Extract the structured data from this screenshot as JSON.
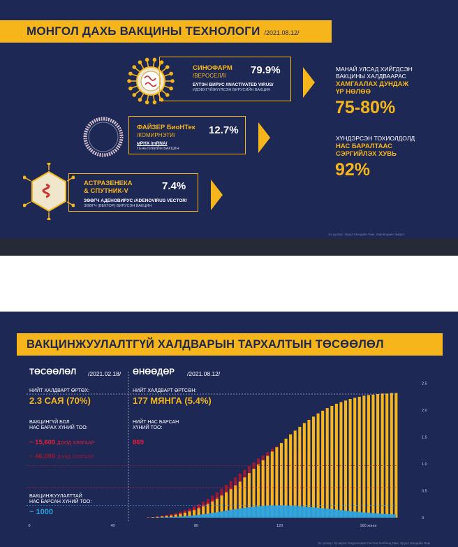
{
  "colors": {
    "navy": "#1d2855",
    "gold": "#f5b51b",
    "red": "#e0213a",
    "darkred": "#9c1a33",
    "blue": "#2ba3e0"
  },
  "panel1": {
    "title": "МОНГОЛ ДАХЬ ВАКЦИНЫ ТЕХНОЛОГИ",
    "date": "/2021.08.12/",
    "vaccines": [
      {
        "name": "СИНОФАРМ",
        "sub": "/ВЕРОСЕЛЛ/",
        "pct": "79.9%",
        "type": "БҮТЭН ВИРУС /INACTIVATED VIRUS/",
        "type2": "ИДЭВХГҮЙЖҮҮЛСЭН ВИРУСИЙН ВАКЦИН",
        "icon": "virus-icon"
      },
      {
        "name": "ФАЙЗЕР БиоНТек",
        "sub": "/КОМИРНЭТИ/",
        "pct": "12.7%",
        "type": "мРНХ /mRNA/",
        "type2": "ГЕНЕТИКИЙН ВАКЦИН",
        "icon": "mrna-ring-icon"
      },
      {
        "name": "АСТРАЗЕНЕКА",
        "name2": "& СПУТНИК-V",
        "pct": "7.4%",
        "type": "ЗӨӨГЧ АДЕНОВИРУС /ADENOVIRUS VECTOR/",
        "type2": "ЗӨӨГЧ (ВЕКТОР) ВИРУСЭН ВАКЦИН",
        "icon": "adenovirus-icon"
      }
    ],
    "side": {
      "line1": "МАНАЙ УЛСАД ХИЙГДСЭН",
      "line2": "ВАКЦИНЫ ХАЛДВААРАС",
      "bold1": "ХАМГААЛАХ ДУНДАЖ",
      "bold2": "ҮР НӨЛӨӨ",
      "big1": "75-80%",
      "line3": "ХҮНДЭРСЭН ТОХИОЛДОЛД",
      "bold3": "НАС БАРАЛТААС",
      "bold4": "СЭРГИЙЛЭХ ХУВЬ",
      "big2": "92%"
    },
    "source": "Эх үүсвэр: Эрүүл Мэндийн Яам, Зөрчилдөөн Эмдэгт"
  },
  "panel2": {
    "title": "ВАКЦИНЖУУЛАЛТГҮЙ ХАЛДВАРЫН ТАРХАЛТЫН ТӨСӨӨЛӨЛ",
    "left": {
      "head": "ТӨСӨӨЛӨЛ",
      "date": "/2021.02.18/",
      "label1": "НИЙТ ХАЛДВАРТ ӨРТӨХ:",
      "value1": "2.3 САЯ (70%)",
      "label2a": "ВАКЦИНГҮЙ БОЛ",
      "label2b": "НАС БАРАХ ХҮНИЙ ТОО:",
      "red1": "~ 15,600",
      "red1s": "ДООД ХЯЗГААР",
      "red2": "~ 46,000",
      "red2s": "ДЭЭД ХЯЗГААР",
      "label3a": "ВАКЦИНЖУУЛАЛТТАЙ",
      "label3b": "НАС БАРСАН ХҮНИЙ ТОО:",
      "blue": "~ 1000"
    },
    "right": {
      "head": "ӨНӨӨДӨР",
      "date": "/2021.08.12/",
      "label1": "НИЙТ ХАЛДВАРТ ӨРТСӨН:",
      "value1": "177 МЯНГА (5.4%)",
      "label2a": "НИЙТ НАС БАРСАН",
      "label2b": "ХҮНИЙ ТОО:",
      "red1": "869"
    },
    "source": "Эх үүсвэр: Хүчирхэг Мэдээллийн Систем Холбоод Яам, Эрүүл Мэндийн Яам"
  },
  "chart_data": {
    "type": "bar",
    "x_unit": "хоног",
    "x_ticks": [
      0,
      40,
      80,
      120,
      160
    ],
    "y_ticks": [
      0,
      0.5,
      1.0,
      1.5,
      2.0,
      2.5
    ],
    "y_tick_labels": [
      "0",
      "0.5",
      "1.0",
      "1.5",
      "2.0",
      "2.5"
    ],
    "xlim": [
      0,
      172
    ],
    "ylim": [
      0,
      2.6
    ],
    "x_start": 57,
    "x_step": 2.2,
    "series": [
      {
        "values": [
          0.005,
          0.01,
          0.015,
          0.022,
          0.03,
          0.04,
          0.055,
          0.07,
          0.09,
          0.115,
          0.14,
          0.175,
          0.21,
          0.25,
          0.3,
          0.35,
          0.41,
          0.47,
          0.53,
          0.6,
          0.67,
          0.75,
          0.83,
          0.91,
          0.99,
          1.07,
          1.15,
          1.23,
          1.31,
          1.39,
          1.47,
          1.55,
          1.62,
          1.69,
          1.76,
          1.82,
          1.88,
          1.94,
          1.99,
          2.04,
          2.08,
          2.12,
          2.15,
          2.18,
          2.21,
          2.23,
          2.25,
          2.27,
          2.28,
          2.29,
          2.3,
          2.31,
          2.31,
          2.32,
          2.32
        ]
      },
      {
        "values": [
          0.008,
          0.015,
          0.025,
          0.035,
          0.05,
          0.065,
          0.085,
          0.11,
          0.14,
          0.17,
          0.21,
          0.25,
          0.3,
          0.35,
          0.41,
          0.47,
          0.54,
          0.61,
          0.68,
          0.75,
          0.82,
          0.89,
          0.96,
          1.03,
          1.1,
          1.16,
          1.22,
          1.28,
          1.33,
          1.38,
          1.42,
          1.46,
          1.49,
          1.52,
          1.54,
          1.56,
          1.57,
          1.58,
          1.58,
          0,
          0,
          0,
          0,
          0,
          0,
          0,
          0,
          0,
          0,
          0,
          0,
          0,
          0,
          0,
          0
        ]
      },
      {
        "values": [
          0.001,
          0.002,
          0.004,
          0.006,
          0.009,
          0.012,
          0.016,
          0.021,
          0.027,
          0.034,
          0.042,
          0.052,
          0.063,
          0.075,
          0.088,
          0.102,
          0.116,
          0.13,
          0.144,
          0.158,
          0.171,
          0.183,
          0.194,
          0.203,
          0.211,
          0.217,
          0.222,
          0.225,
          0.226,
          0.226,
          0.224,
          0.221,
          0.217,
          0.212,
          0.206,
          0.199,
          0.192,
          0.184,
          0.176,
          0.167,
          0.158,
          0.149,
          0.14,
          0.131,
          0.122,
          0.114,
          0.106,
          0.098,
          0.091,
          0.084,
          0.078,
          0.072,
          0.067,
          0.062,
          0.058
        ]
      }
    ],
    "ref_lines_y": [
      2.3,
      0.56,
      0.97,
      0.23
    ]
  }
}
